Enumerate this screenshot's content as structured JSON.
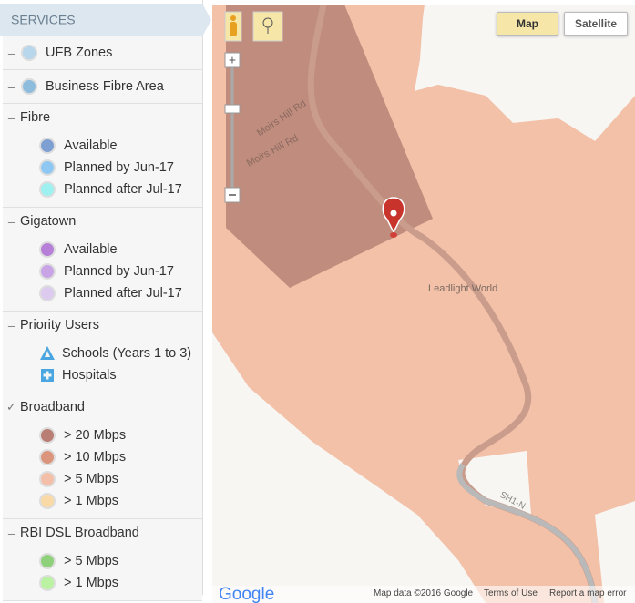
{
  "sidebar": {
    "title": "SERVICES",
    "sections": [
      {
        "marker": "–",
        "title": "UFB Zones",
        "color": "#b8d6ec",
        "items": []
      },
      {
        "marker": "–",
        "title": "Business Fibre Area",
        "color": "#8dbcdc",
        "items": []
      },
      {
        "marker": "–",
        "title": "Fibre",
        "items": [
          {
            "label": "Available",
            "color": "#7d9fd2"
          },
          {
            "label": "Planned by Jun-17",
            "color": "#8ec8f2"
          },
          {
            "label": "Planned after Jul-17",
            "color": "#9ff1f1"
          }
        ]
      },
      {
        "marker": "–",
        "title": "Gigatown",
        "items": [
          {
            "label": "Available",
            "color": "#b67fd8"
          },
          {
            "label": "Planned by Jun-17",
            "color": "#c8a3e6"
          },
          {
            "label": "Planned after Jul-17",
            "color": "#ddcaef"
          }
        ]
      },
      {
        "marker": "–",
        "title": "Priority Users",
        "items": [
          {
            "label": "Schools (Years 1 to 3)",
            "color": "#4aa6e0",
            "icon": "school"
          },
          {
            "label": "Hospitals",
            "color": "#4aa6e0",
            "icon": "hospital"
          }
        ]
      },
      {
        "marker": "✓",
        "title": "Broadband",
        "items": [
          {
            "label": "> 20 Mbps",
            "color": "#b97e73"
          },
          {
            "label": "> 10 Mbps",
            "color": "#da957c"
          },
          {
            "label": "> 5 Mbps",
            "color": "#f3bfa8"
          },
          {
            "label": "> 1 Mbps",
            "color": "#f9d9a6"
          }
        ]
      },
      {
        "marker": "–",
        "title": "RBI DSL Broadband",
        "items": [
          {
            "label": "> 5 Mbps",
            "color": "#8fd17b"
          },
          {
            "label": "> 1 Mbps",
            "color": "#baf2a2"
          }
        ]
      }
    ]
  },
  "map": {
    "buttons": [
      "Map",
      "Satellite"
    ],
    "road_labels": [
      "Moirs Hill Rd",
      "Moirs Hill Rd",
      "SH1-N"
    ],
    "place_label": "Leadlight World",
    "logo": "Google",
    "footer": [
      "Map data ©2016 Google",
      "Terms of Use",
      "Report a map error"
    ]
  }
}
